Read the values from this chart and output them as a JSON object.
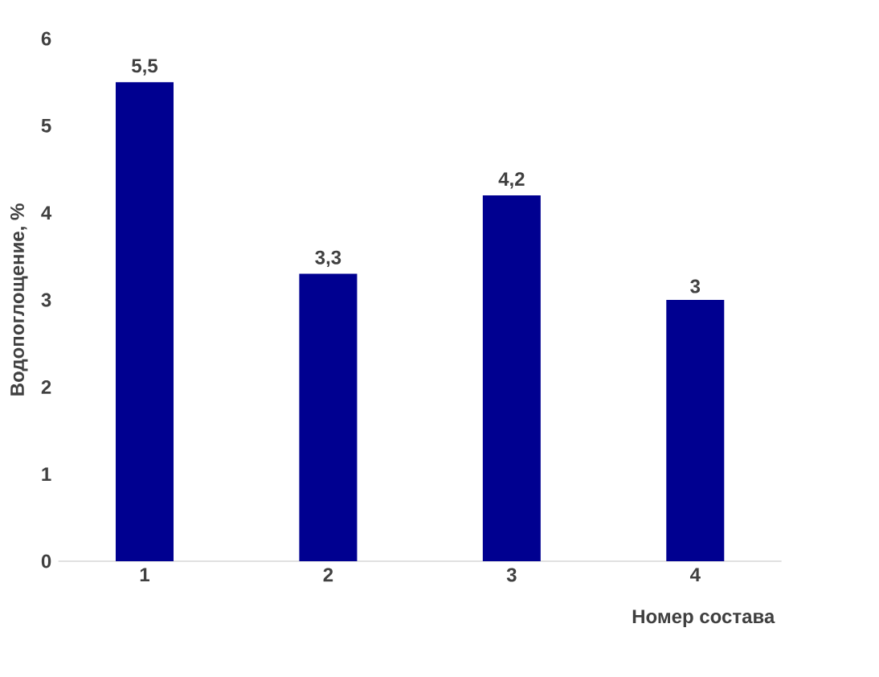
{
  "chart_data": {
    "type": "bar",
    "categories": [
      "1",
      "2",
      "3",
      "4"
    ],
    "values": [
      5.5,
      3.3,
      4.2,
      3
    ],
    "value_labels": [
      "5,5",
      "3,3",
      "4,2",
      "3"
    ],
    "color": "#000090",
    "xlabel": "Номер состава",
    "ylabel": "Водопоглощение, %",
    "ylim": [
      0,
      6
    ],
    "yticks": [
      0,
      1,
      2,
      3,
      4,
      5,
      6
    ]
  }
}
